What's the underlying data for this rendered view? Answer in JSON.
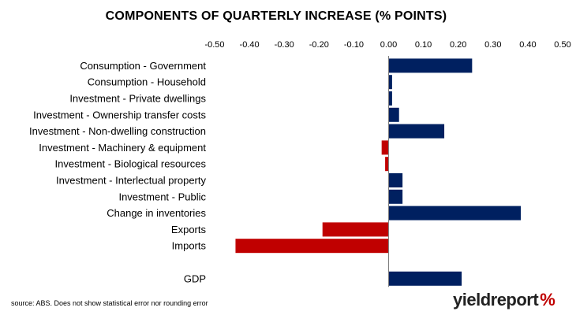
{
  "chart_data": {
    "type": "bar",
    "orientation": "horizontal",
    "title": "COMPONENTS OF QUARTERLY INCREASE (% POINTS)",
    "xlim": [
      -0.5,
      0.5
    ],
    "ticks": [
      "-0.50",
      "-0.40",
      "-0.30",
      "-0.20",
      "-0.10",
      "0.00",
      "0.10",
      "0.20",
      "0.30",
      "0.40",
      "0.50"
    ],
    "categories": [
      "Consumption - Government",
      "Consumption - Household",
      "Investment - Private dwellings",
      "Investment - Ownership transfer costs",
      "Investment - Non-dwelling construction",
      "Investment - Machinery & equipment",
      "Investment - Biological resources",
      "Investment - Interlectual property",
      "Investment - Public",
      "Change in inventories",
      "Exports",
      "Imports",
      "",
      "GDP"
    ],
    "values": [
      0.24,
      0.01,
      0.01,
      0.03,
      0.16,
      -0.02,
      -0.01,
      0.04,
      0.04,
      0.38,
      -0.19,
      -0.44,
      null,
      0.21
    ],
    "colors": [
      "#002060",
      "#002060",
      "#002060",
      "#002060",
      "#002060",
      "#c00000",
      "#c00000",
      "#002060",
      "#002060",
      "#002060",
      "#c00000",
      "#c00000",
      null,
      "#002060"
    ],
    "grid": false,
    "legend": "none"
  },
  "footer": {
    "source": "source: ABS. Does not show statistical error nor rounding error",
    "logo_text": "yieldreport",
    "logo_symbol": "%"
  }
}
